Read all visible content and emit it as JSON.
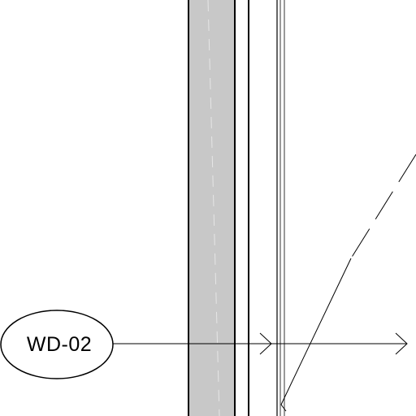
{
  "drawing": {
    "tag_label": "WD-02"
  },
  "colors": {
    "line": "#000000",
    "wall_fill": "#c8c8c8",
    "background": "#ffffff",
    "dash_line": "#e6e6e6"
  }
}
